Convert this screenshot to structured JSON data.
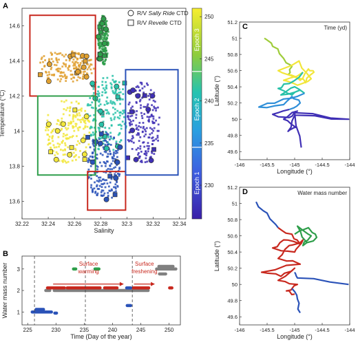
{
  "colors": {
    "epoch1": "#3f2fb5",
    "epoch2a": "#2f8fd8",
    "epoch2b": "#27c1a8",
    "epoch3a": "#9fcc3a",
    "epoch3b": "#f2e63a",
    "orange": "#e0a030",
    "red": "#c8281e",
    "green": "#2e9e4a",
    "blue": "#2a52b8",
    "gray": "#808080"
  },
  "chart_data": [
    {
      "id": "A",
      "type": "scatter",
      "panel_label": "A",
      "xlabel": "Salinity",
      "ylabel": "Temperature (°C)",
      "xlim": [
        32.22,
        32.345
      ],
      "ylim": [
        13.5,
        14.7
      ],
      "xticks": [
        "32.22",
        "32.24",
        "32.26",
        "32.28",
        "32.3",
        "32.32",
        "32.34"
      ],
      "yticks": [
        "13.6",
        "13.8",
        "14",
        "14.2",
        "14.4",
        "14.6"
      ],
      "legend": [
        {
          "marker": "circle",
          "prefix": "R/V ",
          "name": "Sally Ride",
          "suffix": " CTD"
        },
        {
          "marker": "square",
          "prefix": "R/V ",
          "name": "Revelle",
          "suffix": " CTD"
        }
      ],
      "boxes": [
        {
          "color": "red",
          "x": [
            32.226,
            32.276
          ],
          "y": [
            14.2,
            14.66
          ]
        },
        {
          "color": "green",
          "x": [
            32.232,
            32.276
          ],
          "y": [
            13.75,
            14.2
          ]
        },
        {
          "color": "red",
          "x": [
            32.27,
            32.299
          ],
          "y": [
            13.55,
            13.77
          ]
        },
        {
          "color": "blue",
          "x": [
            32.299,
            32.339
          ],
          "y": [
            13.75,
            14.35
          ]
        }
      ],
      "clusters": [
        {
          "color": "orange",
          "x": [
            32.232,
            32.275
          ],
          "y": [
            14.28,
            14.46
          ]
        },
        {
          "color": "yellow",
          "x": [
            32.238,
            32.272
          ],
          "y": [
            13.82,
            14.18
          ]
        },
        {
          "color": "green",
          "x": [
            32.278,
            32.286
          ],
          "y": [
            14.38,
            14.66
          ]
        },
        {
          "color": "teal",
          "x": [
            32.27,
            32.3
          ],
          "y": [
            13.88,
            14.32
          ]
        },
        {
          "color": "blue",
          "x": [
            32.27,
            32.295
          ],
          "y": [
            13.6,
            14.0
          ]
        },
        {
          "color": "indigo",
          "x": [
            32.3,
            32.325
          ],
          "y": [
            13.82,
            14.28
          ]
        }
      ]
    },
    {
      "id": "colorbar",
      "type": "heatmap",
      "range": [
        226,
        251
      ],
      "ticks": [
        "230",
        "235",
        "240",
        "245",
        "250"
      ],
      "epoch_labels": [
        "Epoch 3",
        "Epoch 2",
        "Epoch 1"
      ],
      "epoch_dividers": [
        234.5,
        243.5
      ]
    },
    {
      "id": "B",
      "type": "scatter",
      "panel_label": "B",
      "xlabel": "Time (Day of the year)",
      "ylabel": "Water mass number",
      "xlim": [
        224,
        252
      ],
      "ylim": [
        0.4,
        3.6
      ],
      "xticks": [
        "225",
        "230",
        "235",
        "240",
        "245",
        "250"
      ],
      "yticks": [
        "1",
        "2",
        "3"
      ],
      "dividers": [
        226.2,
        235.2,
        243.5
      ],
      "annotations": [
        {
          "line1": "Surface",
          "line2": "warming",
          "x": [
            229.5,
            242
          ],
          "y": 2.3
        },
        {
          "line1": "Surface",
          "line2": "freshening",
          "x": [
            243.8,
            247.5
          ],
          "y": 2.3
        }
      ],
      "segments": [
        {
          "wm": 1,
          "color": "blue",
          "x": [
            225.8,
            229.2
          ]
        },
        {
          "wm": 1,
          "color": "blue",
          "x": [
            226.5,
            227.8
          ],
          "dy": 0.12
        },
        {
          "wm": 1,
          "color": "blue",
          "x": [
            229.8,
            230.1
          ],
          "dy": -0.05
        },
        {
          "wm": 2,
          "color": "gray",
          "x": [
            228.2,
            228.9
          ]
        },
        {
          "wm": 2,
          "color": "gray",
          "x": [
            229.7,
            246.3
          ]
        },
        {
          "wm": 2,
          "color": "red",
          "x": [
            228.5,
            231.5
          ],
          "dy": 0.12
        },
        {
          "wm": 2,
          "color": "red",
          "x": [
            232.0,
            237.8
          ],
          "dy": 0.12
        },
        {
          "wm": 2,
          "color": "red",
          "x": [
            238.6,
            240.8
          ],
          "dy": 0.12
        },
        {
          "wm": 2,
          "color": "red",
          "x": [
            243.6,
            246.4
          ],
          "dy": 0.12
        },
        {
          "wm": 2,
          "color": "red",
          "x": [
            250.1,
            250.5
          ],
          "dy": 0.12
        },
        {
          "wm": 2,
          "color": "blue",
          "x": [
            242.5,
            243.2
          ],
          "dy": 0.12
        },
        {
          "wm": 1.3,
          "color": "blue",
          "x": [
            242.6,
            243.2
          ]
        },
        {
          "wm": 3,
          "color": "green",
          "x": [
            233.1,
            233.5
          ]
        },
        {
          "wm": 3,
          "color": "green",
          "x": [
            236.9,
            237.6
          ]
        },
        {
          "wm": 3,
          "color": "gray",
          "x": [
            247.8,
            251.2
          ]
        },
        {
          "wm": 3,
          "color": "gray",
          "x": [
            248.2,
            250.7
          ],
          "dy": 0.12
        },
        {
          "wm": 2.77,
          "color": "gray",
          "x": [
            248.3,
            249.4
          ]
        }
      ]
    },
    {
      "id": "C",
      "type": "line",
      "panel_label": "C",
      "title": "Time (yd)",
      "xlabel": "Longitude (°)",
      "ylabel": "Latitude (°)",
      "xlim": [
        -146,
        -144
      ],
      "ylim": [
        49.5,
        51.2
      ],
      "xticks": [
        "-146",
        "-145.5",
        "-145",
        "-144.5",
        "-144"
      ],
      "yticks": [
        "49.6",
        "49.8",
        "50",
        "50.2",
        "50.4",
        "50.6",
        "50.8",
        "51",
        "51.2"
      ],
      "tracks": [
        {
          "color": "epoch3a",
          "points": [
            [
              -145.55,
              51.0
            ],
            [
              -145.4,
              50.9
            ],
            [
              -145.2,
              50.75
            ],
            [
              -145.05,
              50.65
            ],
            [
              -145.12,
              50.55
            ]
          ]
        },
        {
          "color": "epoch3b",
          "points": [
            [
              -145.12,
              50.55
            ],
            [
              -144.9,
              50.48
            ],
            [
              -144.75,
              50.62
            ],
            [
              -144.65,
              50.58
            ],
            [
              -144.8,
              50.45
            ],
            [
              -145.0,
              50.52
            ],
            [
              -145.3,
              50.6
            ],
            [
              -144.92,
              50.72
            ],
            [
              -144.7,
              50.5
            ],
            [
              -144.95,
              50.42
            ],
            [
              -145.2,
              50.48
            ],
            [
              -144.85,
              50.58
            ]
          ]
        },
        {
          "color": "epoch2b",
          "points": [
            [
              -144.85,
              50.58
            ],
            [
              -145.1,
              50.44
            ],
            [
              -145.3,
              50.38
            ],
            [
              -145.05,
              50.3
            ],
            [
              -144.9,
              50.36
            ],
            [
              -145.25,
              50.3
            ],
            [
              -145.0,
              50.4
            ],
            [
              -144.82,
              50.32
            ]
          ]
        },
        {
          "color": "epoch2a",
          "points": [
            [
              -144.82,
              50.32
            ],
            [
              -145.2,
              50.25
            ],
            [
              -145.65,
              50.15
            ],
            [
              -145.2,
              50.18
            ],
            [
              -145.05,
              50.28
            ],
            [
              -144.9,
              50.2
            ],
            [
              -145.1,
              50.12
            ]
          ]
        },
        {
          "color": "epoch1",
          "points": [
            [
              -145.1,
              50.12
            ],
            [
              -145.4,
              50.06
            ],
            [
              -145.1,
              50.02
            ],
            [
              -144.95,
              50.1
            ],
            [
              -145.2,
              50.0
            ],
            [
              -144.98,
              49.9
            ],
            [
              -145.12,
              49.85
            ],
            [
              -145.0,
              50.05
            ],
            [
              -144.02,
              50.0
            ],
            [
              -145.0,
              50.08
            ],
            [
              -144.88,
              49.65
            ]
          ]
        }
      ]
    },
    {
      "id": "D",
      "type": "line",
      "panel_label": "D",
      "title": "Water mass number",
      "xlabel": "Longitude (°)",
      "ylabel": "Latitude (°)",
      "xlim": [
        -146,
        -144
      ],
      "ylim": [
        49.5,
        51.2
      ],
      "xticks": [
        "-146",
        "-145.5",
        "-145",
        "-144.5",
        "-144"
      ],
      "yticks": [
        "49.6",
        "49.8",
        "50",
        "50.2",
        "50.4",
        "50.6",
        "50.8",
        "51",
        "51.2"
      ],
      "tracks": [
        {
          "color": "blue",
          "points": [
            [
              -145.7,
              51.02
            ],
            [
              -145.5,
              50.88
            ],
            [
              -145.3,
              50.7
            ]
          ]
        },
        {
          "color": "red",
          "points": [
            [
              -145.3,
              50.7
            ],
            [
              -145.05,
              50.62
            ],
            [
              -144.9,
              50.5
            ],
            [
              -145.2,
              50.55
            ],
            [
              -145.4,
              50.45
            ],
            [
              -145.0,
              50.4
            ],
            [
              -144.85,
              50.55
            ],
            [
              -145.1,
              50.48
            ],
            [
              -145.3,
              50.32
            ],
            [
              -144.9,
              50.25
            ],
            [
              -145.6,
              50.15
            ],
            [
              -145.25,
              50.1
            ],
            [
              -145.0,
              50.2
            ],
            [
              -145.3,
              50.05
            ],
            [
              -144.95,
              50.0
            ],
            [
              -145.15,
              49.92
            ],
            [
              -145.0,
              49.88
            ]
          ]
        },
        {
          "color": "green",
          "points": [
            [
              -145.0,
              50.62
            ],
            [
              -144.75,
              50.7
            ],
            [
              -144.6,
              50.58
            ],
            [
              -144.85,
              50.48
            ],
            [
              -144.7,
              50.6
            ],
            [
              -144.95,
              50.72
            ],
            [
              -144.78,
              50.52
            ]
          ]
        },
        {
          "color": "blue",
          "points": [
            [
              -145.0,
              50.15
            ],
            [
              -144.95,
              50.08
            ],
            [
              -144.02,
              50.0
            ]
          ]
        },
        {
          "color": "blue",
          "points": [
            [
              -145.05,
              49.95
            ],
            [
              -144.95,
              49.82
            ],
            [
              -144.9,
              49.65
            ]
          ]
        }
      ]
    }
  ]
}
